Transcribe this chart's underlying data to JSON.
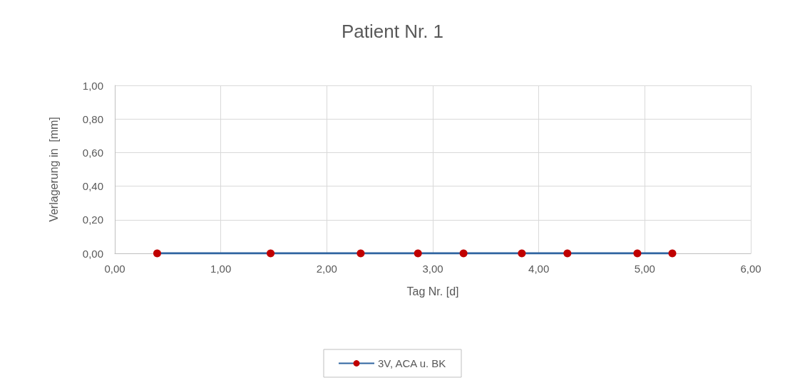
{
  "chart_data": {
    "type": "line",
    "title": "Patient Nr. 1",
    "xlabel": "Tag Nr. [d]",
    "ylabel": "Verlagerung in  [mm]",
    "series": [
      {
        "name": "3V, ACA u. BK",
        "color": "#2e64a0",
        "colors": [
          "#c00000",
          "#c00000",
          "#c00000",
          "#c00000",
          "#c00000",
          "#c00000",
          "#c00000",
          "#c00000",
          "#c00000"
        ],
        "x": [
          0.4,
          1.47,
          2.32,
          2.86,
          3.29,
          3.84,
          4.27,
          4.93,
          5.26
        ],
        "values": [
          0,
          0,
          0,
          0,
          0,
          0,
          0,
          0,
          0
        ]
      }
    ],
    "xlim": [
      0,
      6
    ],
    "xticks": [
      {
        "value": 0,
        "label": "0,00"
      },
      {
        "value": 1,
        "label": "1,00"
      },
      {
        "value": 2,
        "label": "2,00"
      },
      {
        "value": 3,
        "label": "3,00"
      },
      {
        "value": 4,
        "label": "4,00"
      },
      {
        "value": 5,
        "label": "5,00"
      },
      {
        "value": 6,
        "label": "6,00"
      }
    ],
    "ylim": [
      0,
      1
    ],
    "yticks": [
      {
        "value": 0,
        "label": "0,00"
      },
      {
        "value": 0.2,
        "label": "0,20"
      },
      {
        "value": 0.4,
        "label": "0,40"
      },
      {
        "value": 0.6,
        "label": "0,60"
      },
      {
        "value": 0.8,
        "label": "0,80"
      },
      {
        "value": 1,
        "label": "1,00"
      }
    ],
    "grid": true,
    "legend": "bottom",
    "marker": "circle",
    "line_style": "solid"
  }
}
